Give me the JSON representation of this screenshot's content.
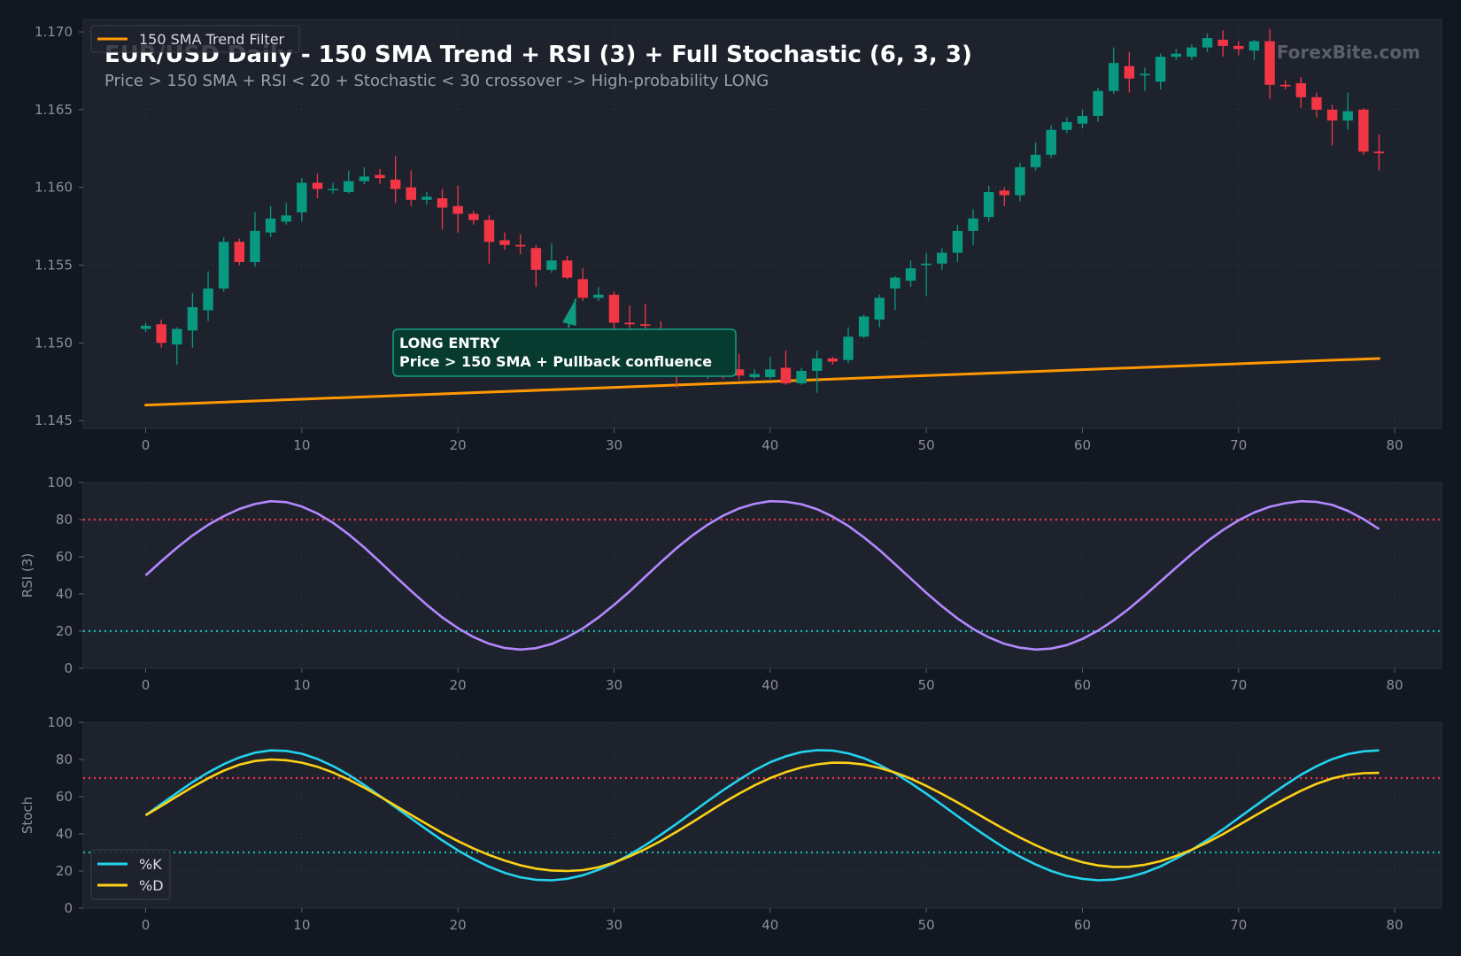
{
  "title": "EUR/USD Daily - 150 SMA Trend + RSI (3) + Full Stochastic (6, 3, 3)",
  "subtitle": "Price > 150 SMA + RSI < 20 + Stochastic < 30 crossover -> High-probability LONG",
  "watermark": "ForexBite.com",
  "colors": {
    "background": "#131722",
    "panel": "#1e222d",
    "bull": "#089981",
    "bear": "#f23645",
    "sma": "#ff9800",
    "rsi": "#b388ff",
    "stoch_k": "#22d3ee",
    "stoch_d": "#fcd116",
    "overbought": "#f23645",
    "oversold": "#14b8a6"
  },
  "chart_data": [
    {
      "type": "candlestick",
      "panel": "price",
      "x_ticks": [
        0,
        10,
        20,
        30,
        40,
        50,
        60,
        70,
        80
      ],
      "y_ticks": [
        "1.145",
        "1.150",
        "1.155",
        "1.160",
        "1.165",
        "1.170"
      ],
      "xlim": [
        -4,
        83
      ],
      "ylim": [
        1.1445,
        1.1708
      ],
      "legend": {
        "position": "top-left",
        "entries": [
          "150 SMA Trend Filter"
        ]
      },
      "sma": {
        "name": "150 SMA Trend Filter",
        "start": 1.146,
        "end": 1.149
      },
      "annotation": {
        "lines": [
          "LONG ENTRY",
          "Price > 150 SMA + Pullback confluence"
        ],
        "target_x": 28,
        "target_y": 1.1529
      },
      "candles": [
        [
          1.1509,
          1.1511,
          1.1513,
          1.1507
        ],
        [
          1.1512,
          1.15,
          1.1515,
          1.1497
        ],
        [
          1.1499,
          1.1509,
          1.151,
          1.1486
        ],
        [
          1.1508,
          1.1523,
          1.1532,
          1.1497
        ],
        [
          1.1521,
          1.1535,
          1.1546,
          1.1514
        ],
        [
          1.1535,
          1.1565,
          1.1568,
          1.1533
        ],
        [
          1.1565,
          1.1552,
          1.1567,
          1.155
        ],
        [
          1.1552,
          1.1572,
          1.1584,
          1.1549
        ],
        [
          1.1571,
          1.158,
          1.1588,
          1.1568
        ],
        [
          1.1578,
          1.1582,
          1.159,
          1.1576
        ],
        [
          1.1584,
          1.1603,
          1.1606,
          1.1578
        ],
        [
          1.1603,
          1.1599,
          1.1609,
          1.1593
        ],
        [
          1.1599,
          1.1599,
          1.1603,
          1.1596
        ],
        [
          1.1597,
          1.1604,
          1.1611,
          1.1596
        ],
        [
          1.1604,
          1.1607,
          1.1613,
          1.1602
        ],
        [
          1.1608,
          1.1606,
          1.1612,
          1.1602
        ],
        [
          1.1605,
          1.1599,
          1.162,
          1.159
        ],
        [
          1.16,
          1.1592,
          1.1611,
          1.1588
        ],
        [
          1.1592,
          1.1594,
          1.1597,
          1.1589
        ],
        [
          1.1593,
          1.1587,
          1.1599,
          1.1573
        ],
        [
          1.1588,
          1.1583,
          1.1601,
          1.1571
        ],
        [
          1.1583,
          1.1579,
          1.1585,
          1.1576
        ],
        [
          1.1579,
          1.1565,
          1.1582,
          1.1551
        ],
        [
          1.1566,
          1.1563,
          1.1571,
          1.156
        ],
        [
          1.1563,
          1.1562,
          1.157,
          1.1557
        ],
        [
          1.1561,
          1.1547,
          1.1563,
          1.1536
        ],
        [
          1.1547,
          1.1553,
          1.1564,
          1.1545
        ],
        [
          1.1553,
          1.1542,
          1.1556,
          1.1541
        ],
        [
          1.1541,
          1.1529,
          1.1548,
          1.1527
        ],
        [
          1.1529,
          1.1531,
          1.1536,
          1.1527
        ],
        [
          1.1531,
          1.1513,
          1.1533,
          1.1509
        ],
        [
          1.1513,
          1.1512,
          1.1524,
          1.1505
        ],
        [
          1.1512,
          1.1511,
          1.1525,
          1.1504
        ],
        [
          1.1509,
          1.15,
          1.1514,
          1.1492
        ],
        [
          1.1497,
          1.1487,
          1.1502,
          1.1471
        ],
        [
          1.1486,
          1.1482,
          1.1491,
          1.1479
        ],
        [
          1.1481,
          1.1484,
          1.1488,
          1.1477
        ],
        [
          1.1484,
          1.1481,
          1.149,
          1.1477
        ],
        [
          1.1483,
          1.1479,
          1.1493,
          1.1476
        ],
        [
          1.1478,
          1.148,
          1.1483,
          1.1477
        ],
        [
          1.1478,
          1.1483,
          1.1491,
          1.1477
        ],
        [
          1.1484,
          1.1474,
          1.1495,
          1.1473
        ],
        [
          1.1474,
          1.1482,
          1.1484,
          1.1473
        ],
        [
          1.1482,
          1.149,
          1.1495,
          1.1468
        ],
        [
          1.149,
          1.1488,
          1.1491,
          1.1486
        ],
        [
          1.1489,
          1.1504,
          1.151,
          1.1487
        ],
        [
          1.1504,
          1.1517,
          1.1518,
          1.1503
        ],
        [
          1.1515,
          1.1529,
          1.1531,
          1.151
        ],
        [
          1.1535,
          1.1542,
          1.1543,
          1.1521
        ],
        [
          1.154,
          1.1548,
          1.1553,
          1.1536
        ],
        [
          1.155,
          1.1551,
          1.1558,
          1.153
        ],
        [
          1.1551,
          1.1558,
          1.1561,
          1.1547
        ],
        [
          1.1558,
          1.1572,
          1.1576,
          1.1552
        ],
        [
          1.1572,
          1.158,
          1.1586,
          1.1563
        ],
        [
          1.1581,
          1.1597,
          1.1601,
          1.1578
        ],
        [
          1.1598,
          1.1595,
          1.16,
          1.1588
        ],
        [
          1.1595,
          1.1613,
          1.1616,
          1.1591
        ],
        [
          1.1613,
          1.1621,
          1.1629,
          1.1611
        ],
        [
          1.1621,
          1.1637,
          1.164,
          1.1619
        ],
        [
          1.1637,
          1.1642,
          1.1645,
          1.1635
        ],
        [
          1.1641,
          1.1646,
          1.165,
          1.1638
        ],
        [
          1.1646,
          1.1662,
          1.1664,
          1.1642
        ],
        [
          1.1662,
          1.168,
          1.169,
          1.166
        ],
        [
          1.1678,
          1.167,
          1.1687,
          1.1661
        ],
        [
          1.1672,
          1.1673,
          1.1677,
          1.1662
        ],
        [
          1.1668,
          1.1684,
          1.1686,
          1.1663
        ],
        [
          1.1684,
          1.1686,
          1.1689,
          1.1682
        ],
        [
          1.1684,
          1.169,
          1.1692,
          1.1682
        ],
        [
          1.169,
          1.1696,
          1.1699,
          1.1687
        ],
        [
          1.1695,
          1.1691,
          1.1701,
          1.1684
        ],
        [
          1.1691,
          1.1689,
          1.1694,
          1.1685
        ],
        [
          1.1688,
          1.1694,
          1.1695,
          1.1682
        ],
        [
          1.1694,
          1.1666,
          1.1702,
          1.1657
        ],
        [
          1.1666,
          1.1665,
          1.1669,
          1.1663
        ],
        [
          1.1667,
          1.1658,
          1.1671,
          1.1651
        ],
        [
          1.1658,
          1.165,
          1.1661,
          1.1645
        ],
        [
          1.165,
          1.1643,
          1.1653,
          1.1627
        ],
        [
          1.1643,
          1.1649,
          1.1661,
          1.1637
        ],
        [
          1.165,
          1.1623,
          1.1651,
          1.1621
        ],
        [
          1.1623,
          1.1622,
          1.1634,
          1.1611
        ]
      ]
    },
    {
      "type": "line",
      "panel": "rsi",
      "ylabel": "RSI (3)",
      "x_ticks": [
        0,
        10,
        20,
        30,
        40,
        50,
        60,
        70,
        80
      ],
      "y_ticks": [
        0,
        20,
        40,
        60,
        80,
        100
      ],
      "xlim": [
        -4,
        83
      ],
      "ylim": [
        0,
        100
      ],
      "levels": [
        80,
        20
      ],
      "series": [
        {
          "values": [
            50.0,
            57.6,
            64.8,
            71.5,
            77.2,
            81.8,
            85.7,
            88.4,
            89.9,
            89.4,
            87.0,
            83.3,
            78.3,
            72.1,
            65.0,
            57.3,
            49.4,
            41.6,
            34.2,
            27.4,
            21.6,
            16.8,
            13.2,
            10.9,
            10.1,
            10.8,
            13.1,
            16.7,
            21.5,
            27.4,
            34.1,
            41.4,
            49.3,
            57.1,
            64.6,
            71.4,
            77.3,
            82.2,
            86.0,
            88.5,
            89.9,
            89.6,
            88.3,
            85.6,
            81.6,
            76.6,
            70.5,
            63.6,
            56.0,
            48.3,
            40.6,
            33.4,
            26.8,
            21.2,
            16.6,
            13.2,
            11.1,
            10.1,
            10.6,
            12.5,
            15.8,
            20.3,
            25.8,
            32.2,
            39.3,
            46.7,
            54.2,
            61.5,
            68.3,
            74.4,
            79.6,
            83.8,
            86.9,
            88.8,
            89.9,
            89.5,
            87.9,
            84.7,
            80.3,
            74.9
          ]
        }
      ]
    },
    {
      "type": "line",
      "panel": "stochastic",
      "ylabel": "Stoch",
      "x_ticks": [
        0,
        10,
        20,
        30,
        40,
        50,
        60,
        70,
        80
      ],
      "y_ticks": [
        0,
        20,
        40,
        60,
        80,
        100
      ],
      "xlim": [
        -4,
        83
      ],
      "ylim": [
        0,
        100
      ],
      "levels": [
        70,
        30
      ],
      "legend": {
        "position": "bottom-left",
        "entries": [
          "%K",
          "%D"
        ]
      },
      "series": [
        {
          "name": "%K",
          "values": [
            50.0,
            56.1,
            62.0,
            67.8,
            73.0,
            77.5,
            81.1,
            83.6,
            84.9,
            84.6,
            83.1,
            80.3,
            76.5,
            71.8,
            66.3,
            60.4,
            54.4,
            48.3,
            42.3,
            36.5,
            31.1,
            26.4,
            22.3,
            19.0,
            16.6,
            15.3,
            15.0,
            15.8,
            17.7,
            20.6,
            24.3,
            28.8,
            33.9,
            39.5,
            45.4,
            51.5,
            57.6,
            63.5,
            69.1,
            74.2,
            78.5,
            81.7,
            84.0,
            85.0,
            84.8,
            83.3,
            80.7,
            77.1,
            72.6,
            67.3,
            61.6,
            55.6,
            49.5,
            43.6,
            37.9,
            32.5,
            27.7,
            23.5,
            20.0,
            17.4,
            15.8,
            15.0,
            15.4,
            16.8,
            19.2,
            22.5,
            26.7,
            31.4,
            36.7,
            42.4,
            48.5,
            54.6,
            60.6,
            66.4,
            71.8,
            76.4,
            80.2,
            82.9,
            84.4,
            84.9
          ]
        },
        {
          "name": "%D",
          "values": [
            50.0,
            55.0,
            60.2,
            65.2,
            69.9,
            74.0,
            77.2,
            79.2,
            80.0,
            79.6,
            78.3,
            76.1,
            73.0,
            69.2,
            64.8,
            60.1,
            55.2,
            50.2,
            45.3,
            40.5,
            36.1,
            32.1,
            28.6,
            25.6,
            23.1,
            21.3,
            20.3,
            20.0,
            20.5,
            22.0,
            24.5,
            27.9,
            31.8,
            36.2,
            41.1,
            46.2,
            51.5,
            56.7,
            61.6,
            66.1,
            70.0,
            73.2,
            75.7,
            77.4,
            78.3,
            78.2,
            77.3,
            75.5,
            73.0,
            69.7,
            65.8,
            61.5,
            56.9,
            52.1,
            47.2,
            42.5,
            38.0,
            33.9,
            30.2,
            27.2,
            24.7,
            23.0,
            22.2,
            22.3,
            23.4,
            25.3,
            28.1,
            31.5,
            35.4,
            39.8,
            44.6,
            49.5,
            54.3,
            58.9,
            63.2,
            66.9,
            69.8,
            71.7,
            72.6,
            72.8
          ]
        }
      ]
    }
  ]
}
